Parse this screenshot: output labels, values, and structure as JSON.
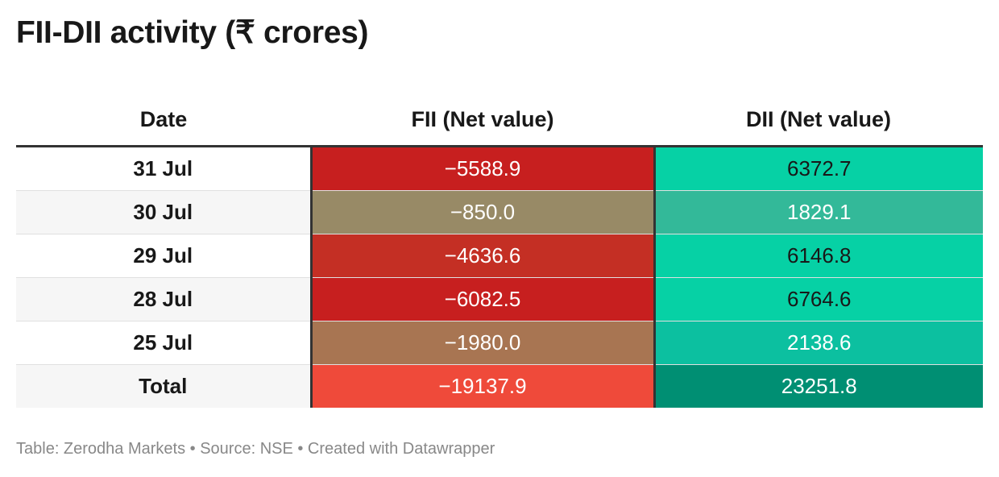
{
  "title": "FII-DII activity (₹ crores)",
  "footer": "Table: Zerodha Markets • Source: NSE • Created with Datawrapper",
  "chart_data": {
    "type": "table",
    "columns": [
      "Date",
      "FII (Net value)",
      "DII (Net value)"
    ],
    "rows": [
      {
        "date": "31 Jul",
        "fii": "−5588.9",
        "dii": "6372.7",
        "fii_color": "#c71f1f",
        "dii_color": "#06d1a5",
        "fii_text": "#ffffff",
        "dii_text": "#181818"
      },
      {
        "date": "30 Jul",
        "fii": "−850.0",
        "dii": "1829.1",
        "fii_color": "#988a66",
        "dii_color": "#33b999",
        "fii_text": "#ffffff",
        "dii_text": "#ffffff"
      },
      {
        "date": "29 Jul",
        "fii": "−4636.6",
        "dii": "6146.8",
        "fii_color": "#c42f24",
        "dii_color": "#06d1a5",
        "fii_text": "#ffffff",
        "dii_text": "#181818"
      },
      {
        "date": "28 Jul",
        "fii": "−6082.5",
        "dii": "6764.6",
        "fii_color": "#c71f1f",
        "dii_color": "#06d1a5",
        "fii_text": "#ffffff",
        "dii_text": "#181818"
      },
      {
        "date": "25 Jul",
        "fii": "−1980.0",
        "dii": "2138.6",
        "fii_color": "#a87552",
        "dii_color": "#0cc0a0",
        "fii_text": "#ffffff",
        "dii_text": "#ffffff"
      },
      {
        "date": "Total",
        "fii": "−19137.9",
        "dii": "23251.8",
        "fii_color": "#ef4a3a",
        "dii_color": "#008f73",
        "fii_text": "#ffffff",
        "dii_text": "#ffffff"
      }
    ]
  }
}
